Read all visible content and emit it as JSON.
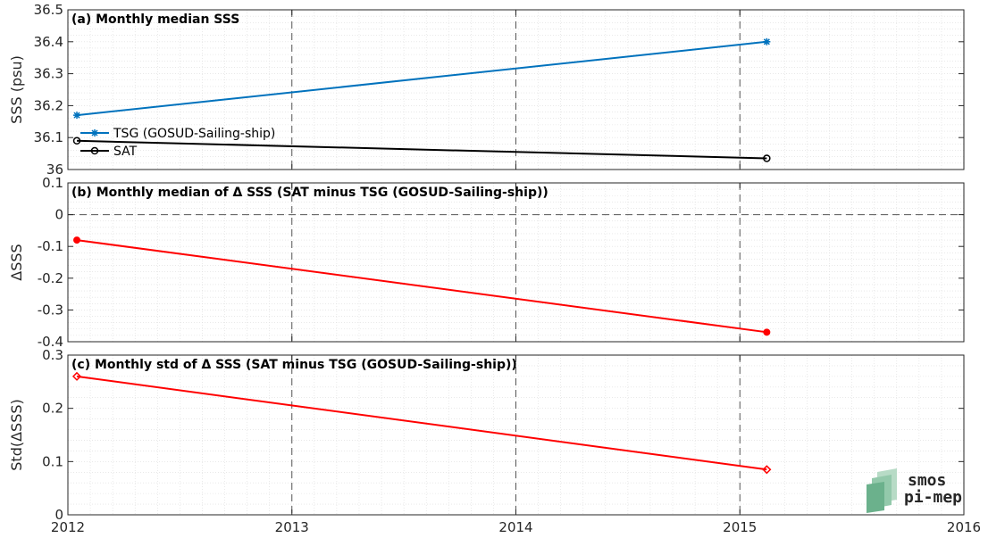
{
  "chart_data": [
    {
      "type": "line",
      "panel": "a",
      "title": "(a) Monthly median SSS",
      "ylabel": "SSS (psu)",
      "xlim": [
        2012,
        2016
      ],
      "ylim": [
        36,
        36.5
      ],
      "yticks": [
        36,
        36.1,
        36.2,
        36.3,
        36.4,
        36.5
      ],
      "ytick_labels": [
        "36",
        "36.1",
        "36.2",
        "36.3",
        "36.4",
        "36.5"
      ],
      "grid": true,
      "legend_position": "lower-left",
      "series": [
        {
          "name": "TSG (GOSUD-Sailing-ship)",
          "color": "#0072BD",
          "marker": "asterisk",
          "x": [
            2012.04,
            2015.12
          ],
          "y": [
            36.17,
            36.4
          ]
        },
        {
          "name": "SAT",
          "color": "#000000",
          "marker": "circle",
          "x": [
            2012.04,
            2015.12
          ],
          "y": [
            36.09,
            36.035
          ]
        }
      ]
    },
    {
      "type": "line",
      "panel": "b",
      "title": "(b) Monthly median of Δ SSS (SAT minus TSG (GOSUD-Sailing-ship))",
      "ylabel": "ΔSSS",
      "xlim": [
        2012,
        2016
      ],
      "ylim": [
        -0.4,
        0.1
      ],
      "yticks": [
        -0.4,
        -0.3,
        -0.2,
        -0.1,
        0,
        0.1
      ],
      "ytick_labels": [
        "-0.4",
        "-0.3",
        "-0.2",
        "-0.1",
        "0",
        "0.1"
      ],
      "grid": true,
      "zero_line": true,
      "series": [
        {
          "color": "#FF0000",
          "marker": "dot",
          "x": [
            2012.04,
            2015.12
          ],
          "y": [
            -0.08,
            -0.37
          ]
        }
      ]
    },
    {
      "type": "line",
      "panel": "c",
      "title": "(c) Monthly std of Δ SSS (SAT minus TSG (GOSUD-Sailing-ship))",
      "ylabel": "Std(ΔSSS)",
      "xlim": [
        2012,
        2016
      ],
      "ylim": [
        0,
        0.3
      ],
      "yticks": [
        0,
        0.1,
        0.2,
        0.3
      ],
      "ytick_labels": [
        "0",
        "0.1",
        "0.2",
        "0.3"
      ],
      "grid": true,
      "series": [
        {
          "color": "#FF0000",
          "marker": "diamond",
          "x": [
            2012.04,
            2015.12
          ],
          "y": [
            0.26,
            0.085
          ]
        }
      ]
    }
  ],
  "xaxis": {
    "ticks": [
      2012,
      2013,
      2014,
      2015,
      2016
    ],
    "tick_labels": [
      "2012",
      "2013",
      "2014",
      "2015",
      "2016"
    ],
    "year_lines": [
      2013,
      2014,
      2015
    ]
  },
  "logo": {
    "line1": "smos",
    "line2": "pi-mep",
    "color": "#5aa882"
  }
}
